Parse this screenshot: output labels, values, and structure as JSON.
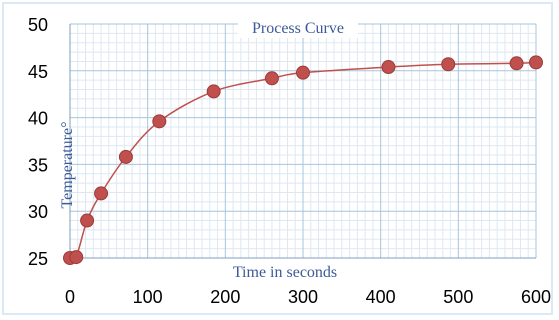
{
  "chart_data": {
    "type": "scatter",
    "title": "Process Curve",
    "xlabel": "Time in seconds",
    "ylabel": "Temperature°",
    "xlim": [
      0,
      600
    ],
    "ylim": [
      25,
      50
    ],
    "xticks": [
      0,
      100,
      200,
      300,
      400,
      500,
      600
    ],
    "yticks": [
      25,
      30,
      35,
      40,
      45,
      50
    ],
    "grid": true,
    "series": [
      {
        "x": [
          0,
          8,
          22,
          40,
          72,
          115,
          185,
          260,
          300,
          410,
          487,
          575,
          600
        ],
        "y": [
          25.0,
          25.1,
          29.0,
          31.9,
          35.8,
          39.6,
          42.8,
          44.2,
          44.8,
          45.4,
          45.7,
          45.8,
          45.9
        ]
      }
    ],
    "colors": {
      "line": "#c0504d",
      "marker": "#c0504d",
      "marker_edge": "#9c3b38",
      "major_grid": "#a9c4de",
      "minor_grid": "#dde8f3",
      "title": "#3c5a98",
      "axis_labels": "#3c5a98"
    }
  }
}
